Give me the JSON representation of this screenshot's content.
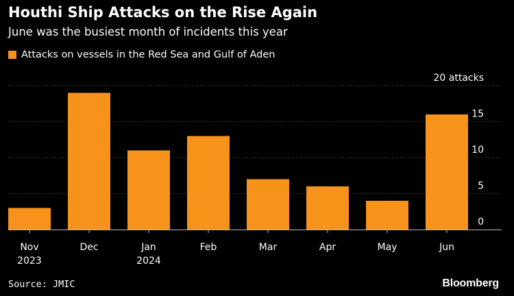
{
  "chart_data": {
    "type": "bar",
    "title": "Houthi Ship Attacks on the Rise Again",
    "subtitle": "June was the busiest month of incidents this year",
    "legend": "Attacks on vessels in the Red Sea and Gulf of Aden",
    "categories": [
      "Nov",
      "Dec",
      "Jan",
      "Feb",
      "Mar",
      "Apr",
      "May",
      "Jun"
    ],
    "category_sublabels": [
      "2023",
      "",
      "2024",
      "",
      "",
      "",
      "",
      ""
    ],
    "values": [
      3,
      19,
      11,
      13,
      7,
      6,
      4,
      16
    ],
    "ylim": [
      0,
      20
    ],
    "yticks": [
      0,
      5,
      10,
      15,
      20
    ],
    "ytick_labels": [
      "0",
      "5",
      "10",
      "15",
      "20 attacks"
    ],
    "y_axis_side": "right",
    "grid": true,
    "legend_position": "top-left",
    "bar_color": "#f7931a",
    "background_color": "#000000",
    "grid_color": "#4a4a4a",
    "text_color": "#ffffff"
  },
  "footer": {
    "source": "Source: JMIC",
    "brand": "Bloomberg"
  }
}
